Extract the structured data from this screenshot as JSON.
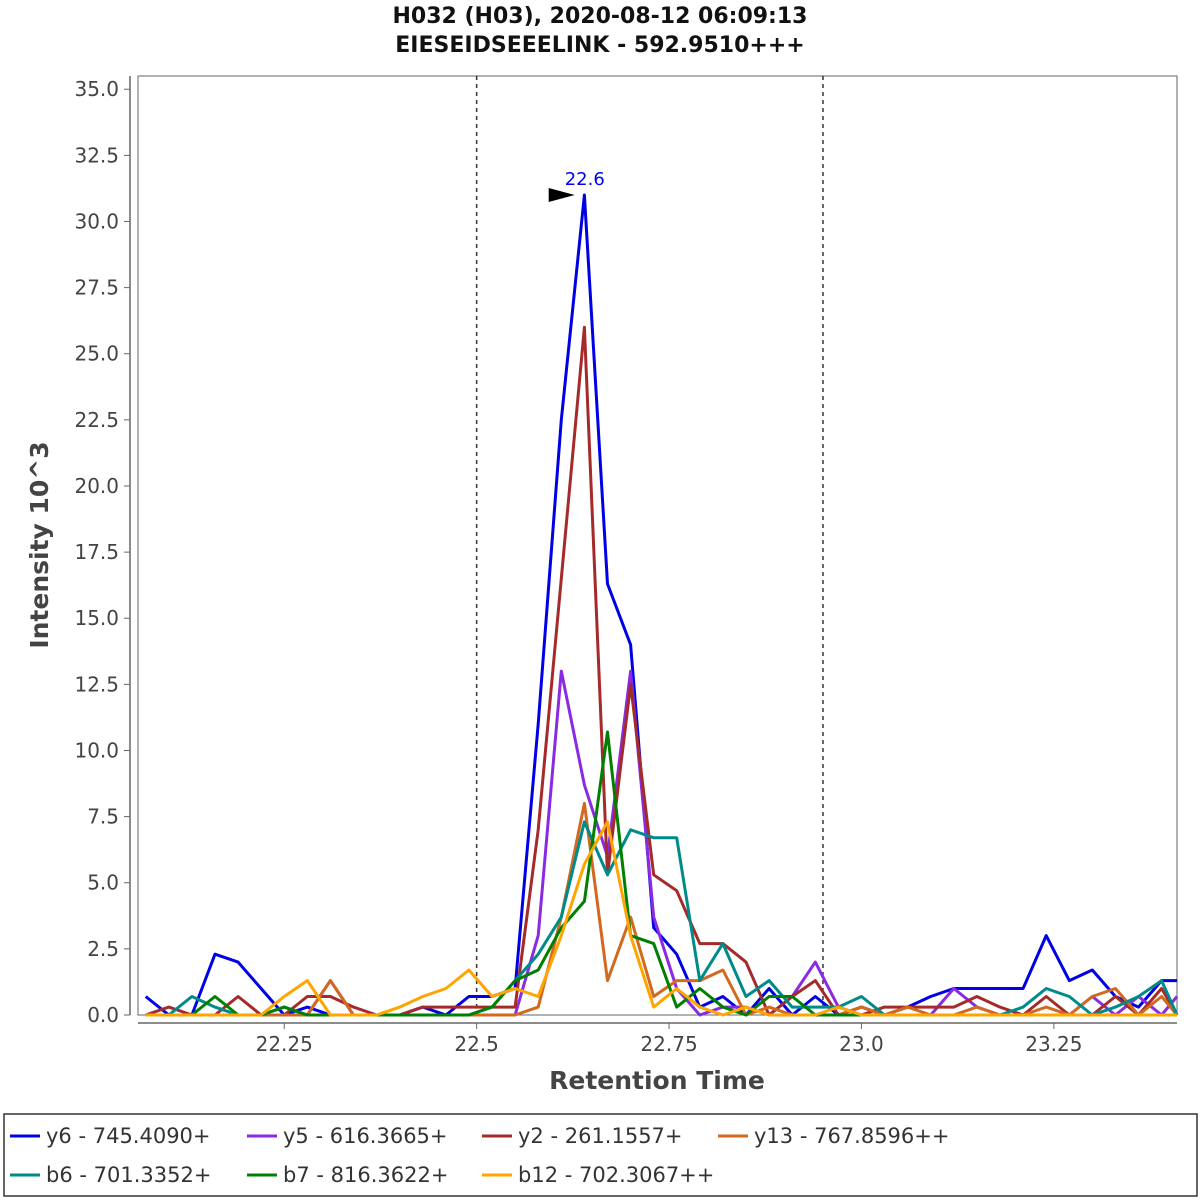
{
  "chart_data": {
    "type": "line",
    "title": "H032 (H03), 2020-08-12 06:09:13",
    "subtitle": "EIESEIDSEEELINK - 592.9510+++",
    "xlabel": "Retention Time",
    "ylabel": "Intensity 10^3",
    "xlim": [
      22.06,
      23.41
    ],
    "ylim": [
      0,
      35.5
    ],
    "x_ticks": [
      22.25,
      22.5,
      22.75,
      23.0,
      23.25
    ],
    "x_tick_labels": [
      "22.25",
      "22.5",
      "22.75",
      "23.0",
      "23.25"
    ],
    "y_ticks": [
      0,
      2.5,
      5,
      7.5,
      10,
      12.5,
      15,
      17.5,
      20,
      22.5,
      25,
      27.5,
      30,
      32.5,
      35
    ],
    "y_tick_labels": [
      "0.0",
      "2.5",
      "5.0",
      "7.5",
      "10.0",
      "12.5",
      "15.0",
      "17.5",
      "20.0",
      "22.5",
      "25.0",
      "27.5",
      "30.0",
      "32.5",
      "35.0"
    ],
    "grid": false,
    "legend_position": "bottom",
    "boundaries": [
      22.5,
      22.95
    ],
    "peak_annotation": {
      "label": "22.6",
      "x": 22.63,
      "y": 31.0
    },
    "x": [
      22.07,
      22.1,
      22.13,
      22.16,
      22.19,
      22.22,
      22.25,
      22.28,
      22.31,
      22.34,
      22.37,
      22.4,
      22.43,
      22.46,
      22.49,
      22.52,
      22.55,
      22.58,
      22.61,
      22.64,
      22.67,
      22.7,
      22.73,
      22.76,
      22.79,
      22.82,
      22.85,
      22.88,
      22.91,
      22.94,
      22.97,
      23.0,
      23.03,
      23.06,
      23.09,
      23.12,
      23.15,
      23.18,
      23.21,
      23.24,
      23.27,
      23.3,
      23.33,
      23.36,
      23.39,
      23.41
    ],
    "series": [
      {
        "name": "y6 - 745.4090+",
        "color": "#0000e6",
        "values": [
          0.7,
          0.0,
          0.0,
          2.3,
          2.0,
          1.0,
          0.0,
          0.3,
          0.0,
          0.0,
          0.0,
          0.0,
          0.3,
          0.0,
          0.7,
          0.7,
          1.0,
          11.0,
          22.5,
          31.0,
          16.3,
          14.0,
          3.3,
          2.3,
          0.3,
          0.7,
          0.0,
          1.0,
          0.0,
          0.7,
          0.0,
          0.3,
          0.0,
          0.3,
          0.7,
          1.0,
          1.0,
          1.0,
          1.0,
          3.0,
          1.3,
          1.7,
          0.7,
          0.3,
          1.3,
          1.3
        ]
      },
      {
        "name": "y5 - 616.3665+",
        "color": "#8a2be2",
        "values": [
          0.0,
          0.0,
          0.0,
          0.0,
          0.0,
          0.0,
          0.0,
          0.0,
          1.3,
          0.0,
          0.0,
          0.0,
          0.0,
          0.0,
          0.0,
          0.0,
          0.0,
          3.0,
          13.0,
          8.7,
          6.0,
          13.0,
          3.7,
          1.0,
          0.0,
          0.3,
          0.3,
          0.0,
          0.7,
          2.0,
          0.3,
          0.0,
          0.0,
          0.0,
          0.0,
          1.0,
          0.3,
          0.0,
          0.0,
          0.0,
          0.0,
          0.7,
          0.0,
          0.7,
          0.0,
          0.7
        ]
      },
      {
        "name": "y2 - 261.1557+",
        "color": "#a52a2a",
        "values": [
          0.0,
          0.3,
          0.0,
          0.0,
          0.7,
          0.0,
          0.0,
          0.7,
          0.7,
          0.3,
          0.0,
          0.0,
          0.3,
          0.3,
          0.3,
          0.3,
          0.3,
          7.0,
          16.5,
          26.0,
          5.3,
          12.5,
          5.3,
          4.7,
          2.7,
          2.7,
          2.0,
          0.0,
          0.7,
          1.3,
          0.0,
          0.0,
          0.3,
          0.3,
          0.3,
          0.3,
          0.7,
          0.3,
          0.0,
          0.7,
          0.0,
          0.0,
          0.7,
          0.0,
          1.0,
          0.0
        ]
      },
      {
        "name": "y13 - 767.8596++",
        "color": "#d2691e",
        "values": [
          0.0,
          0.0,
          0.0,
          0.0,
          0.0,
          0.0,
          0.0,
          0.0,
          1.3,
          0.0,
          0.0,
          0.0,
          0.0,
          0.0,
          0.0,
          0.0,
          0.0,
          0.3,
          3.7,
          8.0,
          1.3,
          3.7,
          0.7,
          1.3,
          1.3,
          1.7,
          0.0,
          0.3,
          0.0,
          0.0,
          0.0,
          0.3,
          0.0,
          0.3,
          0.0,
          0.0,
          0.3,
          0.0,
          0.0,
          0.3,
          0.0,
          0.7,
          1.0,
          0.0,
          0.7,
          0.0
        ]
      },
      {
        "name": "b6 - 701.3352+",
        "color": "#008b8b",
        "values": [
          0.0,
          0.0,
          0.7,
          0.3,
          0.0,
          0.0,
          0.3,
          0.0,
          0.0,
          0.0,
          0.0,
          0.0,
          0.0,
          0.0,
          0.0,
          0.3,
          1.3,
          2.3,
          3.7,
          7.3,
          5.3,
          7.0,
          6.7,
          6.7,
          1.3,
          2.7,
          0.7,
          1.3,
          0.3,
          0.3,
          0.3,
          0.7,
          0.0,
          0.0,
          0.0,
          0.0,
          0.0,
          0.0,
          0.3,
          1.0,
          0.7,
          0.0,
          0.3,
          0.7,
          1.3,
          0.0
        ]
      },
      {
        "name": "b7 - 816.3622+",
        "color": "#008000",
        "values": [
          0.0,
          0.0,
          0.0,
          0.7,
          0.0,
          0.0,
          0.3,
          0.0,
          0.0,
          0.0,
          0.0,
          0.0,
          0.0,
          0.0,
          0.0,
          0.3,
          1.3,
          1.7,
          3.3,
          4.3,
          10.7,
          3.0,
          2.7,
          0.3,
          1.0,
          0.3,
          0.0,
          0.7,
          0.7,
          0.0,
          0.0,
          0.0,
          0.0,
          0.0,
          0.0,
          0.0,
          0.0,
          0.0,
          0.0,
          0.0,
          0.0,
          0.0,
          0.0,
          0.0,
          0.0,
          0.0
        ]
      },
      {
        "name": "b12 - 702.3067++",
        "color": "#ffa500",
        "values": [
          0.0,
          0.0,
          0.0,
          0.0,
          0.0,
          0.0,
          0.7,
          1.3,
          0.0,
          0.0,
          0.0,
          0.3,
          0.7,
          1.0,
          1.7,
          0.7,
          1.0,
          0.7,
          3.0,
          5.7,
          7.3,
          3.0,
          0.3,
          1.0,
          0.3,
          0.0,
          0.3,
          0.0,
          0.0,
          0.0,
          0.3,
          0.0,
          0.0,
          0.0,
          0.0,
          0.0,
          0.0,
          0.0,
          0.0,
          0.0,
          0.0,
          0.0,
          0.0,
          0.0,
          0.0,
          0.0
        ]
      }
    ]
  }
}
